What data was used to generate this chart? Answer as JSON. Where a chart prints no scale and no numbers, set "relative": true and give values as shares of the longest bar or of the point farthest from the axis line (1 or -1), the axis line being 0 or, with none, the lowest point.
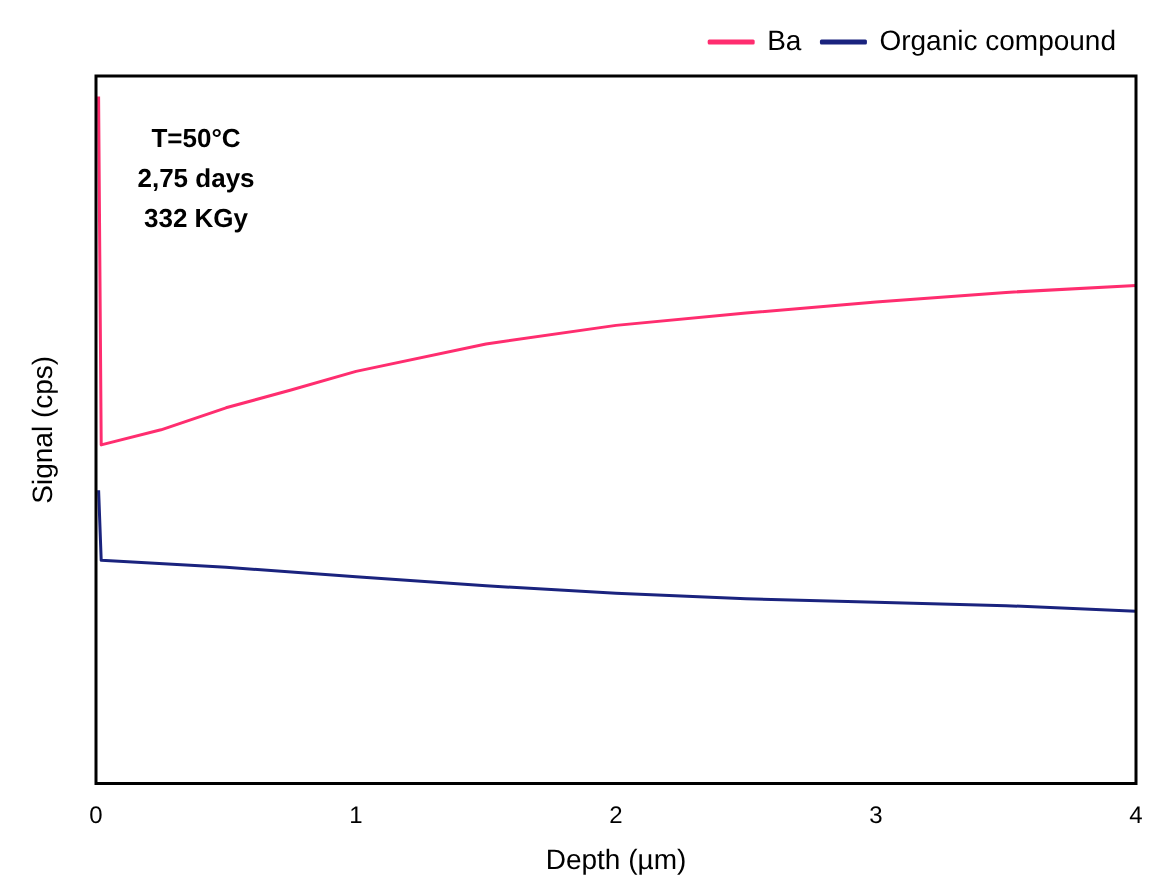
{
  "chart_data": {
    "type": "line",
    "xlabel": "Depth (µm)",
    "ylabel": "Signal (cps)",
    "relative": true,
    "annotations": [
      "T=50°C",
      "2,75 days",
      "332 KGy"
    ],
    "xlim": [
      0,
      4
    ],
    "xticks": [
      0,
      1,
      2,
      3,
      4
    ],
    "legend": "top right",
    "marker": "none",
    "series": [
      {
        "name": "Ba",
        "color": "#ff2d6f",
        "x": [
          0.01,
          0.02,
          0.25,
          0.5,
          0.75,
          1,
          1.5,
          2,
          2.5,
          3,
          3.5,
          4
        ],
        "values": [
          1.0,
          0.493,
          0.515,
          0.547,
          0.573,
          0.6,
          0.64,
          0.667,
          0.685,
          0.701,
          0.715,
          0.725
        ]
      },
      {
        "name": "Organic compound",
        "color": "#1a237e",
        "x": [
          0.01,
          0.02,
          0.5,
          1,
          1.5,
          2,
          2.5,
          3,
          3.5,
          4
        ],
        "values": [
          0.427,
          0.325,
          0.315,
          0.301,
          0.288,
          0.277,
          0.269,
          0.264,
          0.259,
          0.251
        ]
      }
    ]
  }
}
